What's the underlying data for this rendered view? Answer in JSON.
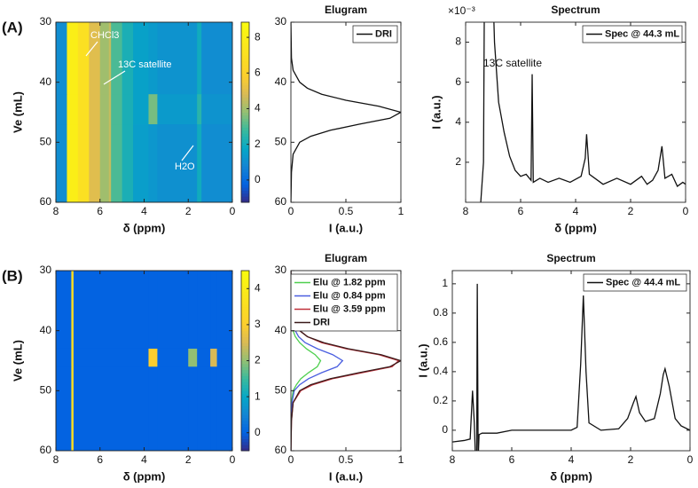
{
  "chart_data": [
    {
      "type": "heatmap",
      "panel_label": "(A)",
      "xlabel": "δ (ppm)",
      "ylabel": "Ve (mL)",
      "colormap": "parula",
      "xlim": [
        8,
        0
      ],
      "xticks": [
        8,
        6,
        4,
        2,
        0
      ],
      "ylim": [
        60,
        30
      ],
      "yticks": [
        30,
        40,
        50,
        60
      ],
      "zlim": [
        -1.25,
        8.85
      ],
      "zticks": [
        0,
        2,
        4,
        6,
        8
      ],
      "xbins": [
        8,
        7.5,
        7,
        6.5,
        6,
        5.6,
        5.5,
        5,
        4.5,
        3.8,
        3.4,
        1.6,
        1.4,
        0
      ],
      "ybins": [
        30,
        42,
        47,
        60
      ],
      "z": [
        [
          1,
          8,
          7,
          5,
          4,
          4.5,
          3,
          2.2,
          1.6,
          1.4,
          1.2,
          2,
          1
        ],
        [
          1,
          8,
          7,
          5,
          4,
          4.5,
          3,
          2.2,
          1.6,
          3.5,
          1.4,
          2.5,
          1.2
        ],
        [
          1,
          8,
          7,
          5,
          4,
          4.5,
          3,
          2.2,
          1.5,
          1.3,
          1.1,
          2,
          1
        ]
      ],
      "annotations": [
        "CHCl3",
        "13C satellite",
        "H2O"
      ]
    },
    {
      "type": "line",
      "orientation": "horizontal",
      "title": "Elugram",
      "xlabel": "I (a.u.)",
      "xlim": [
        0,
        1
      ],
      "xticks": [
        0,
        0.5,
        1
      ],
      "ylim": [
        60,
        30
      ],
      "yticks": [
        30,
        40,
        50,
        60
      ],
      "legend": "upper right",
      "y": [
        30,
        36,
        38,
        40,
        41,
        42,
        43,
        44,
        45,
        46,
        47,
        48,
        49,
        50,
        52,
        55,
        60
      ],
      "series": [
        {
          "name": "DRI",
          "color": "#111111",
          "values": [
            0,
            0.005,
            0.02,
            0.08,
            0.15,
            0.28,
            0.5,
            0.8,
            1,
            0.9,
            0.62,
            0.36,
            0.18,
            0.08,
            0.02,
            0.005,
            0
          ]
        }
      ]
    },
    {
      "type": "line",
      "title": "Spectrum",
      "xlabel": "δ (ppm)",
      "ylabel": "I (a.u.)",
      "y_multiplier": "×10⁻³",
      "xlim": [
        8,
        0
      ],
      "xticks": [
        8,
        6,
        4,
        2,
        0
      ],
      "ylim": [
        0,
        9
      ],
      "yticks": [
        2,
        4,
        6,
        8
      ],
      "legend": "upper right",
      "x": [
        7.45,
        7.35,
        7.3,
        7.1,
        6.95,
        6.8,
        6.6,
        6.4,
        6.2,
        6.0,
        5.8,
        5.62,
        5.58,
        5.54,
        5.3,
        5.0,
        4.6,
        4.2,
        3.8,
        3.65,
        3.6,
        3.5,
        3.2,
        3.0,
        2.5,
        2.0,
        1.6,
        1.4,
        1.2,
        1.0,
        0.86,
        0.75,
        0.5,
        0.3,
        0.1,
        0
      ],
      "series": [
        {
          "name": "Spec @ 44.3 mL",
          "color": "#111111",
          "values": [
            0,
            2,
            15,
            15,
            8,
            5,
            3.5,
            2.3,
            1.6,
            1.3,
            1.4,
            1.1,
            6.4,
            1.0,
            1.2,
            1.0,
            1.2,
            1.0,
            1.3,
            2.2,
            3.4,
            1.4,
            1.1,
            0.9,
            1.2,
            0.9,
            1.3,
            0.9,
            1.1,
            1.6,
            2.8,
            1.2,
            1.4,
            0.8,
            1.0,
            0.9
          ]
        }
      ],
      "annotations": [
        "13C satellite"
      ]
    },
    {
      "type": "heatmap",
      "panel_label": "(B)",
      "xlabel": "δ (ppm)",
      "ylabel": "Ve (mL)",
      "colormap": "parula",
      "xlim": [
        8,
        0
      ],
      "xticks": [
        8,
        6,
        4,
        2,
        0
      ],
      "ylim": [
        60,
        30
      ],
      "yticks": [
        30,
        40,
        50,
        60
      ],
      "zlim": [
        -0.5,
        4.5
      ],
      "zticks": [
        0,
        1,
        2,
        3,
        4
      ],
      "xbins": [
        8,
        7.3,
        7.2,
        3.8,
        3.4,
        2.0,
        1.6,
        1.0,
        0.7,
        0
      ],
      "ybins": [
        30,
        43,
        46,
        60
      ],
      "z": [
        [
          0,
          3.5,
          0,
          0,
          0,
          0,
          0,
          0,
          0
        ],
        [
          0,
          3.5,
          0,
          3,
          0,
          2,
          0,
          2.5,
          0
        ],
        [
          0,
          3.5,
          0,
          0,
          0,
          0,
          0,
          0,
          0
        ]
      ]
    },
    {
      "type": "line",
      "orientation": "horizontal",
      "title": "Elugram",
      "xlabel": "I (a.u.)",
      "xlim": [
        0,
        1
      ],
      "xticks": [
        0,
        0.5,
        1
      ],
      "ylim": [
        60,
        30
      ],
      "yticks": [
        30,
        40,
        50,
        60
      ],
      "legend": "upper right",
      "y": [
        30,
        36,
        38,
        40,
        41,
        42,
        43,
        44,
        45,
        46,
        47,
        48,
        49,
        50,
        52,
        55,
        60
      ],
      "series": [
        {
          "name": "Elu @ 1.82 ppm",
          "color": "#4fcf4f",
          "values": [
            0,
            0,
            0.005,
            0.02,
            0.04,
            0.08,
            0.14,
            0.22,
            0.27,
            0.24,
            0.16,
            0.09,
            0.05,
            0.02,
            0.005,
            0,
            0
          ]
        },
        {
          "name": "Elu @ 0.84 ppm",
          "color": "#4a5ee0",
          "values": [
            0,
            0,
            0.01,
            0.04,
            0.07,
            0.13,
            0.24,
            0.38,
            0.47,
            0.42,
            0.28,
            0.16,
            0.08,
            0.03,
            0.01,
            0,
            0
          ]
        },
        {
          "name": "Elu @ 3.59 ppm",
          "color": "#c0303a",
          "values": [
            0,
            0.005,
            0.02,
            0.08,
            0.15,
            0.28,
            0.5,
            0.8,
            0.98,
            0.92,
            0.65,
            0.38,
            0.2,
            0.09,
            0.02,
            0.005,
            0
          ]
        },
        {
          "name": "DRI",
          "color": "#3a1a1a",
          "values": [
            0,
            0.005,
            0.02,
            0.08,
            0.15,
            0.3,
            0.52,
            0.82,
            1,
            0.9,
            0.62,
            0.36,
            0.18,
            0.08,
            0.02,
            0.005,
            0
          ]
        }
      ]
    },
    {
      "type": "line",
      "title": "Spectrum",
      "xlabel": "δ (ppm)",
      "ylabel": "I (a.u.)",
      "xlim": [
        8,
        0
      ],
      "xticks": [
        8,
        6,
        4,
        2,
        0
      ],
      "ylim": [
        -0.14,
        1.09
      ],
      "yticks": [
        0,
        0.2,
        0.4,
        0.6,
        0.8,
        1
      ],
      "legend": "upper right",
      "x": [
        8,
        7.6,
        7.4,
        7.32,
        7.26,
        7.22,
        7.18,
        7.16,
        7.13,
        7.1,
        7.0,
        6.5,
        6.0,
        5.0,
        4.0,
        3.8,
        3.68,
        3.59,
        3.5,
        3.4,
        3.0,
        2.4,
        2.1,
        1.9,
        1.82,
        1.7,
        1.5,
        1.2,
        1.0,
        0.9,
        0.84,
        0.7,
        0.5,
        0.3,
        0
      ],
      "series": [
        {
          "name": "Spec @ 44.4 mL",
          "color": "#111111",
          "values": [
            -0.08,
            -0.07,
            -0.06,
            0.27,
            0.05,
            -0.2,
            -0.2,
            1.0,
            -0.2,
            -0.03,
            -0.02,
            -0.02,
            0,
            0,
            0,
            0.02,
            0.45,
            0.92,
            0.4,
            0.05,
            0,
            0.01,
            0.08,
            0.19,
            0.23,
            0.12,
            0.06,
            0.08,
            0.25,
            0.38,
            0.42,
            0.3,
            0.08,
            0.03,
            0
          ]
        }
      ]
    }
  ]
}
